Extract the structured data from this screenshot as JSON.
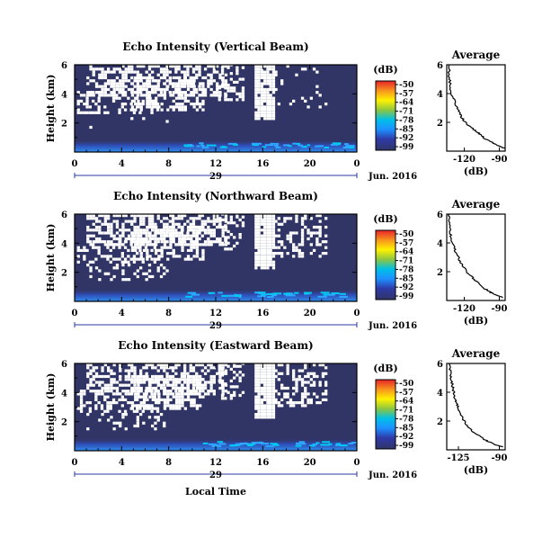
{
  "chart_data": [
    {
      "type": "heatmap",
      "title": "Echo Intensity (Vertical Beam)",
      "ylabel": "Height (km)",
      "y_ticks": [
        "2",
        "4",
        "6"
      ],
      "x_ticks": [
        "0",
        "4",
        "8",
        "12",
        "16",
        "20",
        "0"
      ],
      "xlim": [
        0,
        24
      ],
      "ylim": [
        0,
        6
      ],
      "date_day": "29",
      "date_month": "Jun. 2016",
      "colorbar": {
        "unit": "(dB)",
        "ticks": [
          "-50",
          "-57",
          "-64",
          "-71",
          "-78",
          "-85",
          "-92",
          "-99"
        ]
      },
      "background_value_dB": -99,
      "average_profile": {
        "title": "Average",
        "xlabel": "(dB)",
        "x_ticks": [
          "-120",
          "-90"
        ],
        "y_ticks": [
          "2",
          "4",
          "6"
        ],
        "xlim": [
          -135,
          -85
        ],
        "profile": [
          [
            -85.5,
            0.2
          ],
          [
            -90,
            0.35
          ],
          [
            -96,
            0.6
          ],
          [
            -103,
            0.9
          ],
          [
            -107,
            1.2
          ],
          [
            -112,
            1.5
          ],
          [
            -118,
            1.9
          ],
          [
            -122,
            2.3
          ],
          [
            -124,
            2.7
          ],
          [
            -127,
            3.1
          ],
          [
            -129,
            3.6
          ],
          [
            -131,
            4.0
          ],
          [
            -132,
            4.6
          ],
          [
            -133,
            5.2
          ],
          [
            -133,
            6.0
          ]
        ]
      }
    },
    {
      "type": "heatmap",
      "title": "Echo Intensity (Northward Beam)",
      "ylabel": "Height (km)",
      "y_ticks": [
        "2",
        "4",
        "6"
      ],
      "x_ticks": [
        "0",
        "4",
        "8",
        "12",
        "16",
        "20",
        "0"
      ],
      "xlim": [
        0,
        24
      ],
      "ylim": [
        0,
        6
      ],
      "date_day": "29",
      "date_month": "Jun. 2016",
      "colorbar": {
        "unit": "(dB)",
        "ticks": [
          "-50",
          "-57",
          "-64",
          "-71",
          "-78",
          "-85",
          "-92",
          "-99"
        ]
      },
      "background_value_dB": -99,
      "average_profile": {
        "title": "Average",
        "xlabel": "(dB)",
        "x_ticks": [
          "-120",
          "-90"
        ],
        "y_ticks": [
          "2",
          "4",
          "6"
        ],
        "xlim": [
          -135,
          -85
        ],
        "profile": [
          [
            -87,
            0.2
          ],
          [
            -92,
            0.35
          ],
          [
            -98,
            0.6
          ],
          [
            -104,
            0.9
          ],
          [
            -108,
            1.2
          ],
          [
            -113,
            1.6
          ],
          [
            -118,
            2.0
          ],
          [
            -121,
            2.4
          ],
          [
            -124,
            2.8
          ],
          [
            -127,
            3.3
          ],
          [
            -129,
            3.8
          ],
          [
            -131,
            4.3
          ],
          [
            -132,
            4.8
          ],
          [
            -133,
            5.4
          ],
          [
            -133,
            6.0
          ]
        ]
      }
    },
    {
      "type": "heatmap",
      "title": "Echo Intensity (Eastward Beam)",
      "ylabel": "Height (km)",
      "y_ticks": [
        "2",
        "4",
        "6"
      ],
      "x_ticks": [
        "0",
        "4",
        "8",
        "12",
        "16",
        "20",
        "0"
      ],
      "xlabel": "Local Time",
      "xlim": [
        0,
        24
      ],
      "ylim": [
        0,
        6
      ],
      "date_day": "29",
      "date_month": "Jun. 2016",
      "colorbar": {
        "unit": "(dB)",
        "ticks": [
          "-50",
          "-57",
          "-64",
          "-71",
          "-78",
          "-85",
          "-92",
          "-99"
        ]
      },
      "background_value_dB": -99,
      "average_profile": {
        "title": "Average",
        "xlabel": "(dB)",
        "x_ticks": [
          "-125",
          "-90"
        ],
        "y_ticks": [
          "2",
          "4",
          "6"
        ],
        "xlim": [
          -135,
          -85
        ],
        "profile": [
          [
            -87,
            0.2
          ],
          [
            -93,
            0.35
          ],
          [
            -100,
            0.6
          ],
          [
            -106,
            0.9
          ],
          [
            -112,
            1.2
          ],
          [
            -117,
            1.6
          ],
          [
            -121,
            2.1
          ],
          [
            -124,
            2.6
          ],
          [
            -126,
            3.1
          ],
          [
            -128,
            3.5
          ],
          [
            -129,
            4.0
          ],
          [
            -130,
            4.4
          ],
          [
            -131,
            4.9
          ],
          [
            -132,
            5.4
          ],
          [
            -133,
            6.0
          ]
        ]
      }
    }
  ]
}
